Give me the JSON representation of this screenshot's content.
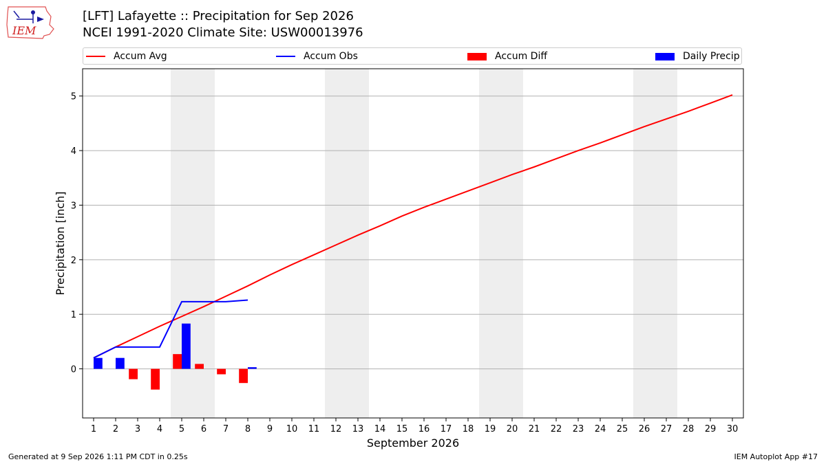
{
  "logo": {
    "text": "IEM",
    "icon": "iem-iowa-logo-icon"
  },
  "header": {
    "title": "[LFT] Lafayette :: Precipitation for Sep 2026",
    "subtitle": "NCEI 1991-2020 Climate Site: USW00013976"
  },
  "legend": [
    {
      "label": "Accum Avg",
      "kind": "line",
      "color": "#ff0000"
    },
    {
      "label": "Accum Obs",
      "kind": "line",
      "color": "#0000ff"
    },
    {
      "label": "Accum Diff",
      "kind": "bar",
      "color": "#ff0000"
    },
    {
      "label": "Daily Precip",
      "kind": "bar",
      "color": "#0000ff"
    }
  ],
  "footer": {
    "generated": "Generated at 9 Sep 2026 1:11 PM CDT in 0.25s",
    "app": "IEM Autoplot App #17"
  },
  "chart_data": {
    "type": "bar",
    "xlabel": "September 2026",
    "ylabel": "Precipitation [inch]",
    "xlim": [
      0.5,
      30.5
    ],
    "ylim": [
      -0.9,
      5.5
    ],
    "xticks": [
      1,
      2,
      3,
      4,
      5,
      6,
      7,
      8,
      9,
      10,
      11,
      12,
      13,
      14,
      15,
      16,
      17,
      18,
      19,
      20,
      21,
      22,
      23,
      24,
      25,
      26,
      27,
      28,
      29,
      30
    ],
    "yticks": [
      0,
      1,
      2,
      3,
      4,
      5
    ],
    "grid": "horizontal",
    "weekend_shading": [
      [
        4.5,
        6.5
      ],
      [
        11.5,
        13.5
      ],
      [
        18.5,
        20.5
      ],
      [
        25.5,
        27.5
      ]
    ],
    "series": [
      {
        "name": "Accum Avg",
        "type": "line",
        "color": "#ff0000",
        "x": [
          1,
          2,
          3,
          4,
          5,
          6,
          7,
          8,
          9,
          10,
          11,
          12,
          13,
          14,
          15,
          16,
          17,
          18,
          19,
          20,
          21,
          22,
          23,
          24,
          25,
          26,
          27,
          28,
          29,
          30
        ],
        "values": [
          0.2,
          0.4,
          0.59,
          0.78,
          0.96,
          1.14,
          1.33,
          1.52,
          1.72,
          1.91,
          2.09,
          2.27,
          2.45,
          2.62,
          2.8,
          2.96,
          3.11,
          3.26,
          3.41,
          3.56,
          3.7,
          3.85,
          4.0,
          4.14,
          4.29,
          4.44,
          4.58,
          4.72,
          4.87,
          5.02
        ]
      },
      {
        "name": "Accum Obs",
        "type": "line",
        "color": "#0000ff",
        "x": [
          1,
          2,
          3,
          4,
          5,
          6,
          7,
          8
        ],
        "values": [
          0.2,
          0.4,
          0.4,
          0.4,
          1.23,
          1.23,
          1.23,
          1.26
        ]
      },
      {
        "name": "Accum Diff",
        "type": "bar",
        "color": "#ff0000",
        "x": [
          1,
          2,
          3,
          4,
          5,
          6,
          7,
          8
        ],
        "values": [
          0.0,
          0.0,
          -0.19,
          -0.38,
          0.27,
          0.09,
          -0.1,
          -0.26
        ]
      },
      {
        "name": "Daily Precip",
        "type": "bar",
        "color": "#0000ff",
        "x": [
          1,
          2,
          3,
          4,
          5,
          6,
          7,
          8
        ],
        "values": [
          0.2,
          0.2,
          0.0,
          0.0,
          0.83,
          0.0,
          0.0,
          0.03
        ]
      }
    ]
  }
}
